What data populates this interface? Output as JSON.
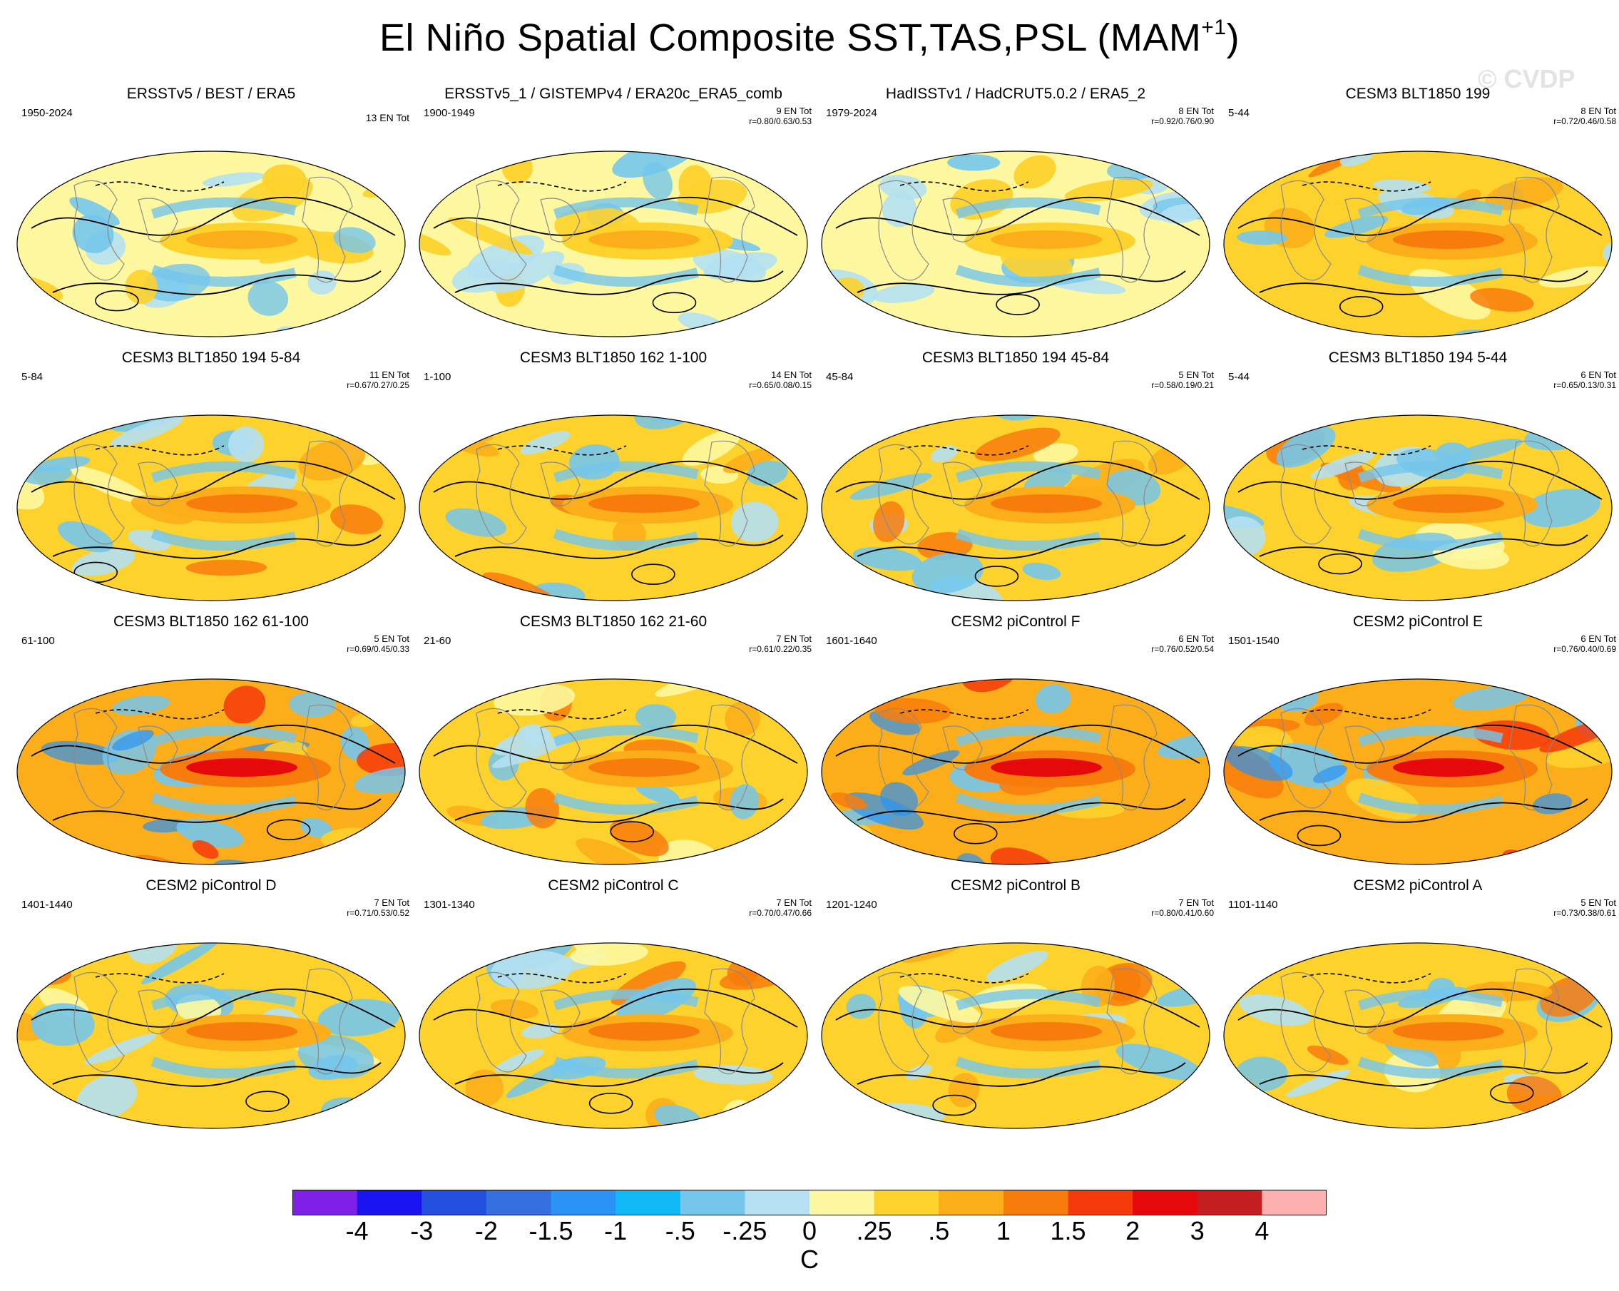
{
  "figure": {
    "title": "El Niño Spatial Composite SST,TAS,PSL (MAM",
    "title_sup": "+1",
    "title_close": ")",
    "watermark": "© CVDP"
  },
  "chart_data": {
    "type": "heatmap",
    "variable_units": "C",
    "projection": "global map composite (Robinson-style ellipse)",
    "colorbar": {
      "ticks": [
        "-4",
        "-3",
        "-2",
        "-1.5",
        "-1",
        "-.5",
        "-.25",
        "0",
        ".25",
        ".5",
        "1",
        "1.5",
        "2",
        "3",
        "4"
      ],
      "colors": [
        "#7f20e8",
        "#1a14f0",
        "#2450e0",
        "#3470e0",
        "#2a93f5",
        "#10b8f5",
        "#74c6ec",
        "#b4e0f2",
        "#fdf8a0",
        "#fdd22c",
        "#fbae1a",
        "#f87c0c",
        "#f53a0a",
        "#e6090c",
        "#c41e20",
        "#fcb0b0"
      ]
    },
    "panels": [
      {
        "title": "ERSSTv5 / BEST / ERA5",
        "years": "1950-2024",
        "count": "13 EN Tot",
        "r": "",
        "tone": "cool"
      },
      {
        "title": "ERSSTv5_1 / GISTEMPv4 / ERA20c_ERA5_comb",
        "years": "1900-1949",
        "count": "9 EN Tot",
        "r": "r=0.80/0.63/0.53",
        "tone": "cool"
      },
      {
        "title": "HadISSTv1 / HadCRUT5.0.2 / ERA5_2",
        "years": "1979-2024",
        "count": "8 EN Tot",
        "r": "r=0.92/0.76/0.90",
        "tone": "cool"
      },
      {
        "title": "CESM3 BLT1850 199",
        "years": "5-44",
        "count": "8 EN Tot",
        "r": "r=0.72/0.46/0.58",
        "tone": "warm"
      },
      {
        "title": "CESM3 BLT1850 194 5-84",
        "years": "5-84",
        "count": "11 EN Tot",
        "r": "r=0.67/0.27/0.25",
        "tone": "warm"
      },
      {
        "title": "CESM3 BLT1850 162 1-100",
        "years": "1-100",
        "count": "14 EN Tot",
        "r": "r=0.65/0.08/0.15",
        "tone": "warm"
      },
      {
        "title": "CESM3 BLT1850 194 45-84",
        "years": "45-84",
        "count": "5 EN Tot",
        "r": "r=0.58/0.19/0.21",
        "tone": "warm"
      },
      {
        "title": "CESM3 BLT1850 194 5-44",
        "years": "5-44",
        "count": "6 EN Tot",
        "r": "r=0.65/0.13/0.31",
        "tone": "warm"
      },
      {
        "title": "CESM3 BLT1850 162 61-100",
        "years": "61-100",
        "count": "5 EN Tot",
        "r": "r=0.69/0.45/0.33",
        "tone": "hot"
      },
      {
        "title": "CESM3 BLT1850 162 21-60",
        "years": "21-60",
        "count": "7 EN Tot",
        "r": "r=0.61/0.22/0.35",
        "tone": "warm"
      },
      {
        "title": "CESM2 piControl F",
        "years": "1601-1640",
        "count": "6 EN Tot",
        "r": "r=0.76/0.52/0.54",
        "tone": "hot"
      },
      {
        "title": "CESM2 piControl E",
        "years": "1501-1540",
        "count": "6 EN Tot",
        "r": "r=0.76/0.40/0.69",
        "tone": "hot"
      },
      {
        "title": "CESM2 piControl D",
        "years": "1401-1440",
        "count": "7 EN Tot",
        "r": "r=0.71/0.53/0.52",
        "tone": "warm"
      },
      {
        "title": "CESM2 piControl C",
        "years": "1301-1340",
        "count": "7 EN Tot",
        "r": "r=0.70/0.47/0.66",
        "tone": "warm"
      },
      {
        "title": "CESM2 piControl B",
        "years": "1201-1240",
        "count": "7 EN Tot",
        "r": "r=0.80/0.41/0.60",
        "tone": "warm"
      },
      {
        "title": "CESM2 piControl A",
        "years": "1101-1140",
        "count": "5 EN Tot",
        "r": "r=0.73/0.38/0.61",
        "tone": "warm"
      }
    ]
  }
}
